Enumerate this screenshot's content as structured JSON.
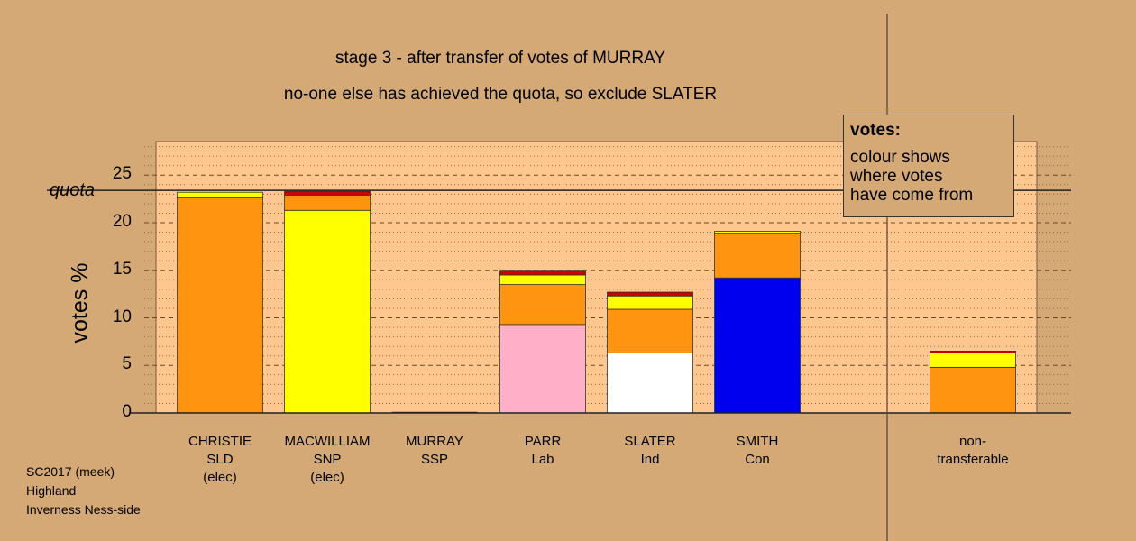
{
  "titles": {
    "line1": "stage 3 - after transfer of votes of MURRAY",
    "line2": "no-one else has achieved the quota, so exclude SLATER"
  },
  "footer": {
    "line1": "SC2017 (meek)",
    "line2": "Highland",
    "line3": "Inverness Ness-side"
  },
  "legend": {
    "title": "votes:",
    "line1": "colour shows",
    "line2": "where votes",
    "line3": "have come from"
  },
  "chart_data": {
    "type": "bar",
    "stacked": true,
    "ylabel": "votes %",
    "ylim": [
      0,
      28.5
    ],
    "yticks": [
      0,
      5,
      10,
      15,
      20,
      25
    ],
    "quota": {
      "label": "quota",
      "value": 23.4
    },
    "grid": true,
    "legend_placement": "top-right",
    "colors": {
      "background": "#d4a976",
      "plot_area": "#fdc78f",
      "SLD": "#ff9410",
      "SNP": "#ffff00",
      "Lab": "#ffb0c8",
      "Ind": "#ffffff",
      "Con": "#0000ee",
      "SSP": "#cc0000"
    },
    "categories": [
      {
        "name": "CHRISTIE",
        "party": "SLD",
        "status": "(elec)",
        "segments": [
          {
            "source": "SLD",
            "value": 22.6
          },
          {
            "source": "SNP",
            "value": 0.6
          }
        ]
      },
      {
        "name": "MACWILLIAM",
        "party": "SNP",
        "status": "(elec)",
        "segments": [
          {
            "source": "SNP",
            "value": 21.3
          },
          {
            "source": "SLD",
            "value": 1.6
          },
          {
            "source": "SSP",
            "value": 0.4
          }
        ]
      },
      {
        "name": "MURRAY",
        "party": "SSP",
        "status": "",
        "segments": []
      },
      {
        "name": "PARR",
        "party": "Lab",
        "status": "",
        "segments": [
          {
            "source": "Lab",
            "value": 9.3
          },
          {
            "source": "SLD",
            "value": 4.2
          },
          {
            "source": "SNP",
            "value": 1.0
          },
          {
            "source": "SSP",
            "value": 0.5
          }
        ]
      },
      {
        "name": "SLATER",
        "party": "Ind",
        "status": "",
        "segments": [
          {
            "source": "Ind",
            "value": 6.3
          },
          {
            "source": "SLD",
            "value": 4.6
          },
          {
            "source": "SNP",
            "value": 1.4
          },
          {
            "source": "SSP",
            "value": 0.4
          }
        ]
      },
      {
        "name": "SMITH",
        "party": "Con",
        "status": "",
        "segments": [
          {
            "source": "Con",
            "value": 14.2
          },
          {
            "source": "SLD",
            "value": 4.7
          },
          {
            "source": "SNP",
            "value": 0.2
          }
        ]
      },
      {
        "name": "non-",
        "party": "transferable",
        "status": "",
        "segments": [
          {
            "source": "SLD",
            "value": 4.8
          },
          {
            "source": "SNP",
            "value": 1.5
          },
          {
            "source": "SSP",
            "value": 0.2
          }
        ]
      }
    ]
  }
}
